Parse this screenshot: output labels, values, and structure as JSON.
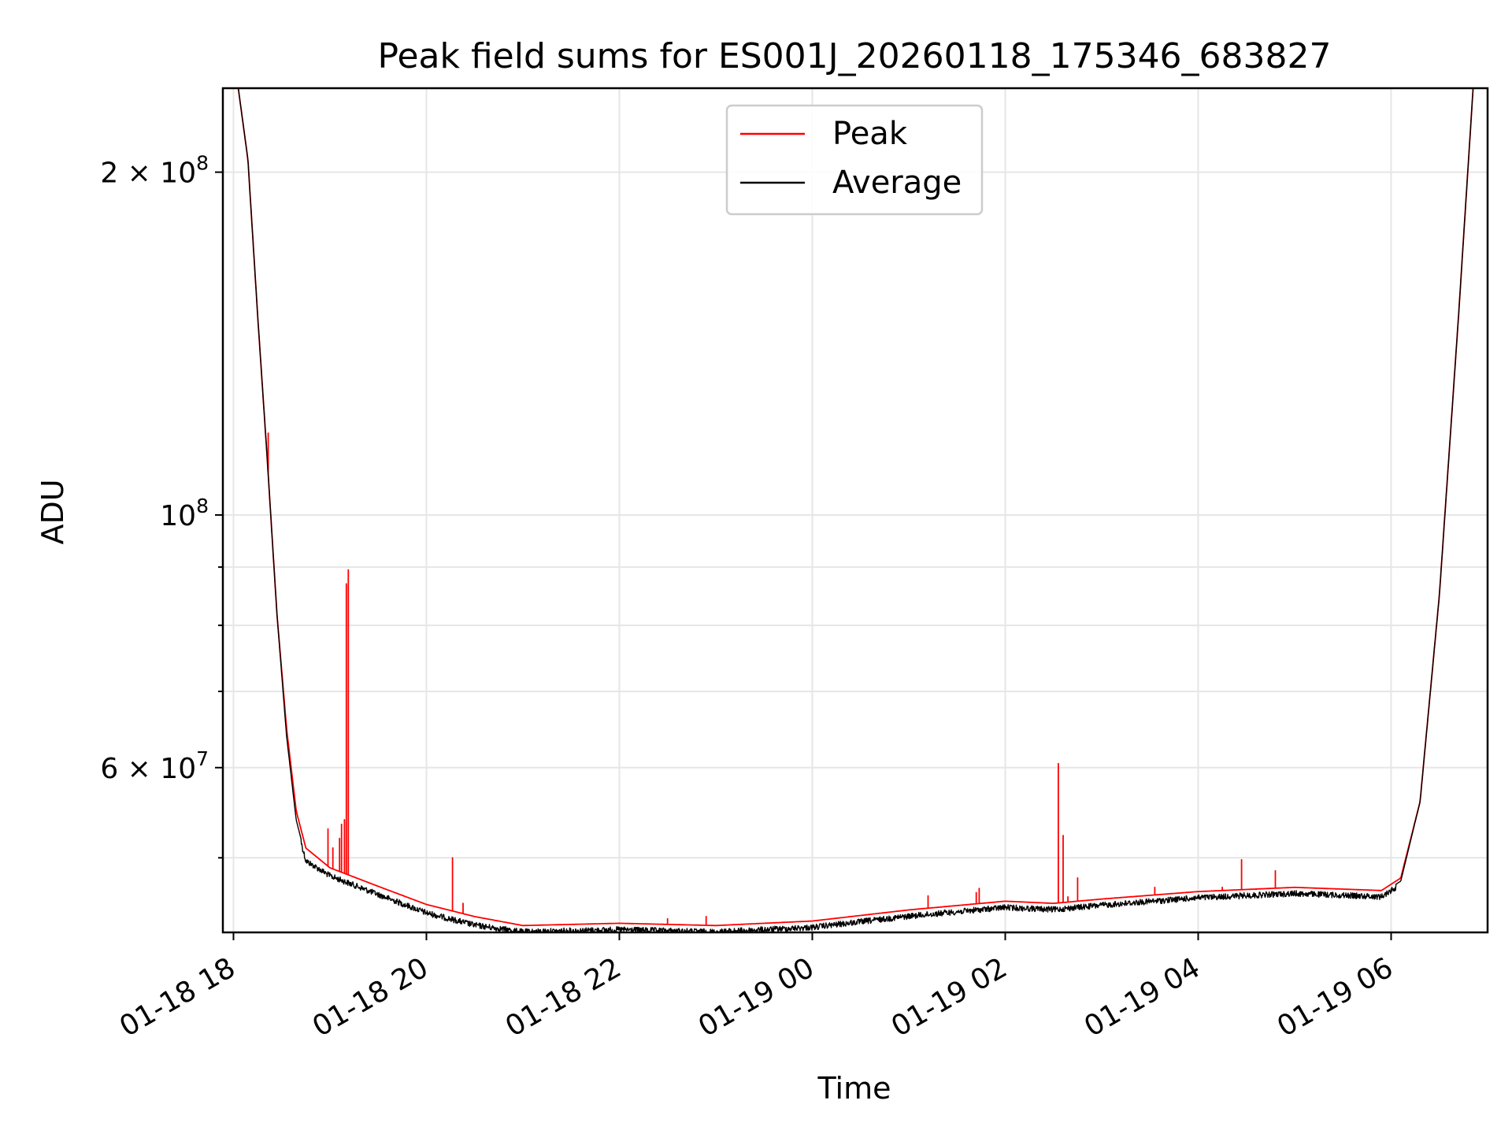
{
  "chart_data": {
    "type": "line",
    "title": "Peak field sums for ES001J_20260118_175346_683827",
    "xlabel": "Time",
    "ylabel": "ADU",
    "yscale": "log",
    "ylim": [
      43000000,
      237000000
    ],
    "xlim_hours": [
      -0.11,
      13.0
    ],
    "grid": true,
    "legend_position": "upper center",
    "x_ticks": [
      {
        "hour": 0,
        "label": "01-18 18"
      },
      {
        "hour": 2,
        "label": "01-18 20"
      },
      {
        "hour": 4,
        "label": "01-18 22"
      },
      {
        "hour": 6,
        "label": "01-19 00"
      },
      {
        "hour": 8,
        "label": "01-19 02"
      },
      {
        "hour": 10,
        "label": "01-19 04"
      },
      {
        "hour": 12,
        "label": "01-19 06"
      }
    ],
    "y_ticks_major": [
      {
        "value": 100000000,
        "base": "10",
        "exp": "8",
        "coef": ""
      },
      {
        "value": 200000000,
        "base": "10",
        "exp": "8",
        "coef": "2 × "
      },
      {
        "value": 60000000,
        "base": "10",
        "exp": "7",
        "coef": "6 × "
      }
    ],
    "y_ticks_minor": [
      50000000,
      70000000,
      80000000,
      90000000
    ],
    "series": [
      {
        "name": "Peak",
        "color": "#ff0000",
        "x_hours": [
          -0.1,
          0.05,
          0.15,
          0.25,
          0.35,
          0.45,
          0.55,
          0.65,
          0.75,
          1.0,
          1.5,
          2.0,
          2.5,
          3.0,
          3.5,
          4.0,
          5.0,
          5.5,
          6.0,
          7.0,
          8.0,
          8.5,
          9.0,
          10.0,
          11.0,
          11.9,
          12.1,
          12.3,
          12.5,
          12.7,
          12.85
        ],
        "values": [
          237000000,
          237000000,
          205000000,
          150000000,
          112000000,
          82000000,
          65000000,
          55000000,
          51000000,
          49000000,
          47200000,
          45500000,
          44400000,
          43600000,
          43700000,
          43800000,
          43600000,
          43800000,
          44000000,
          45000000,
          45800000,
          45600000,
          46000000,
          46700000,
          47100000,
          46800000,
          48000000,
          56000000,
          85000000,
          150000000,
          237000000
        ]
      },
      {
        "name": "Average",
        "color": "#000000",
        "x_hours": [
          -0.1,
          0.05,
          0.15,
          0.25,
          0.35,
          0.45,
          0.55,
          0.65,
          0.75,
          1.0,
          1.5,
          2.0,
          2.5,
          3.0,
          3.5,
          4.0,
          5.0,
          5.5,
          6.0,
          7.0,
          8.0,
          8.5,
          9.0,
          10.0,
          11.0,
          11.9,
          12.1,
          12.3,
          12.5,
          12.7,
          12.85
        ],
        "values": [
          237000000,
          237000000,
          205000000,
          150000000,
          112000000,
          82000000,
          64000000,
          54000000,
          50000000,
          48500000,
          46700000,
          45000000,
          43900000,
          43300000,
          43400000,
          43500000,
          43300000,
          43500000,
          43700000,
          44700000,
          45500000,
          45300000,
          45700000,
          46400000,
          46800000,
          46500000,
          47700000,
          56000000,
          85000000,
          150000000,
          237000000
        ]
      }
    ],
    "peak_spikes": [
      {
        "hour": 0.36,
        "value": 118000000
      },
      {
        "hour": 0.98,
        "value": 53000000
      },
      {
        "hour": 1.03,
        "value": 51000000
      },
      {
        "hour": 1.1,
        "value": 52000000
      },
      {
        "hour": 1.12,
        "value": 53500000
      },
      {
        "hour": 1.15,
        "value": 54000000
      },
      {
        "hour": 1.17,
        "value": 87000000
      },
      {
        "hour": 1.19,
        "value": 89500000
      },
      {
        "hour": 2.27,
        "value": 50000000
      },
      {
        "hour": 2.38,
        "value": 45600000
      },
      {
        "hour": 4.5,
        "value": 44200000
      },
      {
        "hour": 4.9,
        "value": 44400000
      },
      {
        "hour": 7.2,
        "value": 46300000
      },
      {
        "hour": 7.7,
        "value": 46600000
      },
      {
        "hour": 7.73,
        "value": 47000000
      },
      {
        "hour": 8.55,
        "value": 60500000
      },
      {
        "hour": 8.6,
        "value": 52300000
      },
      {
        "hour": 8.65,
        "value": 46200000
      },
      {
        "hour": 8.75,
        "value": 48000000
      },
      {
        "hour": 8.9,
        "value": 45900000
      },
      {
        "hour": 9.55,
        "value": 47100000
      },
      {
        "hour": 10.25,
        "value": 47100000
      },
      {
        "hour": 10.45,
        "value": 49800000
      },
      {
        "hour": 10.6,
        "value": 46900000
      },
      {
        "hour": 10.8,
        "value": 48700000
      }
    ]
  }
}
